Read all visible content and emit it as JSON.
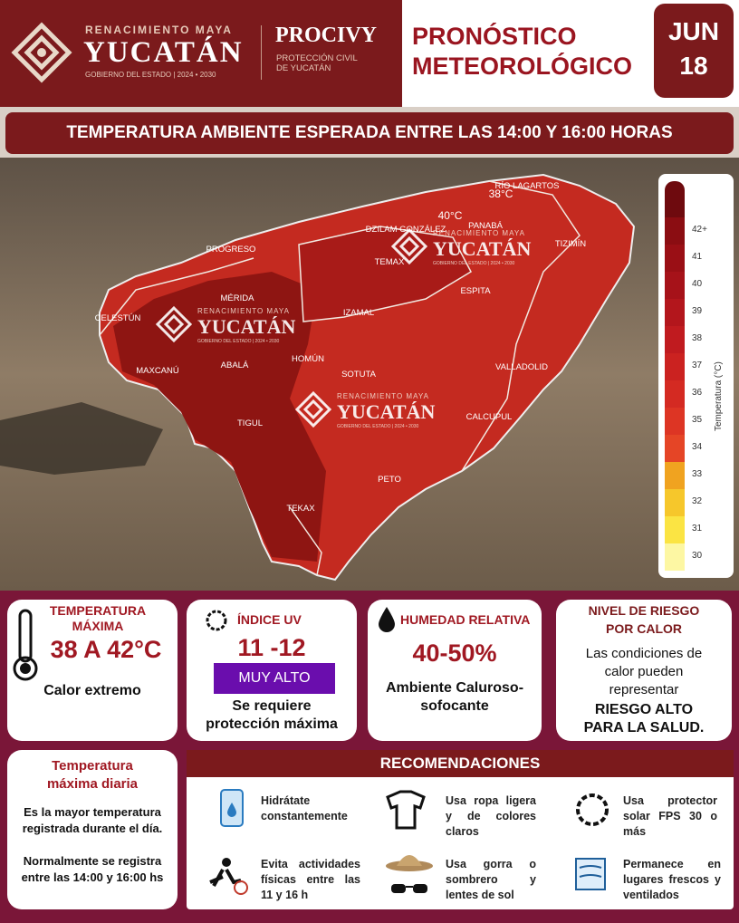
{
  "header": {
    "brand_top": "RENACIMIENTO MAYA",
    "brand_name": "YUCATÁN",
    "brand_sub": "GOBIERNO DEL ESTADO | 2024 • 2030",
    "agency": "PROCIVY",
    "agency_sub": "PROTECCIÓN CIVIL DE YUCATÁN",
    "title": "PRONÓSTICO METEOROLÓGICO",
    "month": "JUN",
    "day": "18"
  },
  "banner": "TEMPERATURA AMBIENTE ESPERADA ENTRE LAS 14:00 Y 16:00 HORAS",
  "map": {
    "cities": [
      "RÍO LAGARTOS",
      "PANABÁ",
      "DZILAM GONZÁLEZ",
      "TIZIMÍN",
      "PROGRESO",
      "TEMAX",
      "ESPITA",
      "MÉRIDA",
      "CELESTÚN",
      "IZAMAL",
      "MAXCANÚ",
      "ABALÁ",
      "HOMÚN",
      "SOTUTA",
      "VALLADOLID",
      "TIGUL",
      "CALCUPUL",
      "PETO",
      "TEKAX"
    ],
    "isotherms": [
      "38°C",
      "40°C"
    ]
  },
  "legend": {
    "title": "Temperatura (°C)",
    "steps": [
      {
        "label": "42+",
        "color": "#8b0d12"
      },
      {
        "label": 41,
        "color": "#9a0f15"
      },
      {
        "label": 40,
        "color": "#a61219"
      },
      {
        "label": 39,
        "color": "#b3161c"
      },
      {
        "label": 38,
        "color": "#c01b1f"
      },
      {
        "label": 37,
        "color": "#cb2220"
      },
      {
        "label": 36,
        "color": "#d42a22"
      },
      {
        "label": 35,
        "color": "#dd3524"
      },
      {
        "label": 34,
        "color": "#e54526"
      },
      {
        "label": 33,
        "color": "#f0a320"
      },
      {
        "label": 32,
        "color": "#f6c72b"
      },
      {
        "label": 31,
        "color": "#fbe443"
      },
      {
        "label": 30,
        "color": "#fdf7a3"
      }
    ]
  },
  "cards": {
    "max_temp": {
      "title": "TEMPERATURA MÁXIMA",
      "value": "38 A 42°C",
      "description": "Calor extremo"
    },
    "uv": {
      "title": "ÍNDICE UV",
      "value": "11 -12",
      "badge": "MUY ALTO",
      "description": "Se requiere protección máxima"
    },
    "humidity": {
      "title": "HUMEDAD RELATIVA",
      "value": "40-50%",
      "description": "Ambiente Caluroso-sofocante"
    },
    "risk": {
      "title": "NIVEL DE RIESGO POR CALOR",
      "description": "Las condiciones de calor pueden representar",
      "level": "RIESGO ALTO PARA LA SALUD."
    }
  },
  "definition": {
    "title": "Temperatura máxima diaria",
    "text": "Es la mayor temperatura registrada durante el día.",
    "note": "Normalmente se registra entre las 14:00 y 16:00 hs"
  },
  "recommendations": {
    "title": "RECOMENDACIONES",
    "items": [
      "Hidrátate constantemente",
      "Usa ropa ligera y de colores claros",
      "Usa protector solar FPS 30 o más",
      "Evita actividades físicas entre las 11 y 16 h",
      "Usa gorra o sombrero y lentes de sol",
      "Permanece en lugares frescos y ventilados"
    ]
  }
}
